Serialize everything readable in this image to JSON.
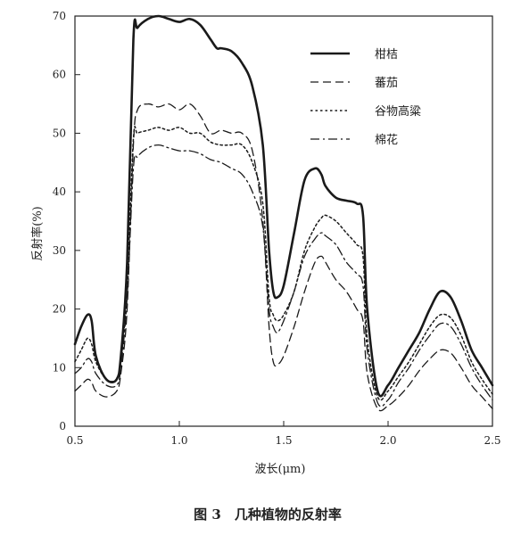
{
  "chart_data": {
    "type": "line",
    "title": "",
    "caption": "图 3　几种植物的反射率",
    "xlabel": "波长(μm)",
    "ylabel": "反射率(%)",
    "xlim": [
      0.5,
      2.5
    ],
    "ylim": [
      0,
      70
    ],
    "x_ticks": [
      0.5,
      1.0,
      1.5,
      2.0,
      2.5
    ],
    "x_tick_labels": [
      "0.5",
      "1.0",
      "1.5",
      "2.0",
      "2.5"
    ],
    "y_ticks": [
      0,
      10,
      20,
      30,
      40,
      50,
      60,
      70
    ],
    "y_tick_labels": [
      "0",
      "10",
      "20",
      "30",
      "40",
      "50",
      "60",
      "70"
    ],
    "grid": false,
    "legend_position": "top-right",
    "series": [
      {
        "name": "柑桔",
        "style": "solid",
        "x": [
          0.5,
          0.53,
          0.56,
          0.58,
          0.6,
          0.65,
          0.7,
          0.72,
          0.75,
          0.78,
          0.8,
          0.85,
          0.9,
          0.95,
          1.0,
          1.05,
          1.1,
          1.15,
          1.18,
          1.2,
          1.25,
          1.3,
          1.35,
          1.4,
          1.43,
          1.45,
          1.47,
          1.5,
          1.55,
          1.6,
          1.65,
          1.68,
          1.7,
          1.75,
          1.8,
          1.85,
          1.88,
          1.9,
          1.95,
          2.0,
          2.05,
          2.1,
          2.15,
          2.2,
          2.25,
          2.3,
          2.35,
          2.4,
          2.45,
          2.5
        ],
        "y": [
          14,
          17,
          19,
          18,
          12,
          8,
          8,
          12,
          28,
          66,
          68,
          69.5,
          70,
          69.5,
          69,
          69.5,
          68.5,
          66,
          64.5,
          64.5,
          64,
          62,
          58,
          48,
          30,
          23,
          22,
          24,
          33,
          42,
          44,
          43,
          41,
          39,
          38.5,
          38,
          36,
          20,
          6,
          7,
          10,
          13,
          16,
          20,
          23,
          22,
          18,
          13,
          10,
          7
        ]
      },
      {
        "name": "蕃茄",
        "style": "dashed",
        "x": [
          0.5,
          0.53,
          0.56,
          0.58,
          0.6,
          0.65,
          0.7,
          0.72,
          0.75,
          0.78,
          0.8,
          0.85,
          0.9,
          0.95,
          1.0,
          1.05,
          1.1,
          1.15,
          1.2,
          1.25,
          1.3,
          1.35,
          1.4,
          1.43,
          1.45,
          1.47,
          1.5,
          1.55,
          1.6,
          1.65,
          1.68,
          1.7,
          1.75,
          1.8,
          1.85,
          1.88,
          1.9,
          1.95,
          2.0,
          2.05,
          2.1,
          2.15,
          2.2,
          2.25,
          2.3,
          2.35,
          2.4,
          2.45,
          2.5
        ],
        "y": [
          6,
          7,
          8,
          7.5,
          6,
          5,
          6,
          9,
          20,
          48,
          54,
          55,
          54.5,
          55,
          54,
          55,
          53,
          50,
          50.5,
          50,
          50,
          47,
          35,
          17,
          11,
          10.5,
          12,
          17,
          23,
          28,
          29,
          28,
          25,
          23,
          20,
          18,
          9,
          3,
          3.5,
          5,
          7,
          9.5,
          11.5,
          13,
          12.5,
          10,
          7,
          5,
          3
        ]
      },
      {
        "name": "谷物高粱",
        "style": "dotted",
        "x": [
          0.5,
          0.53,
          0.56,
          0.58,
          0.6,
          0.65,
          0.7,
          0.72,
          0.75,
          0.78,
          0.8,
          0.85,
          0.9,
          0.95,
          1.0,
          1.05,
          1.1,
          1.15,
          1.2,
          1.25,
          1.3,
          1.35,
          1.4,
          1.43,
          1.45,
          1.47,
          1.5,
          1.55,
          1.6,
          1.65,
          1.68,
          1.7,
          1.75,
          1.8,
          1.85,
          1.88,
          1.9,
          1.95,
          2.0,
          2.05,
          2.1,
          2.15,
          2.2,
          2.25,
          2.3,
          2.35,
          2.4,
          2.45,
          2.5
        ],
        "y": [
          11,
          13,
          15,
          14,
          11,
          8,
          8,
          11,
          24,
          49,
          50,
          50.5,
          51,
          50.5,
          51,
          50,
          50,
          48.5,
          48,
          48,
          48,
          45,
          38,
          22,
          19,
          18,
          19,
          23,
          30,
          34,
          35.5,
          36,
          35,
          33,
          31,
          29,
          15,
          5,
          6,
          8.5,
          11,
          14,
          17,
          19,
          18.5,
          15.5,
          11,
          8,
          5.5
        ]
      },
      {
        "name": "棉花",
        "style": "dashdot",
        "x": [
          0.5,
          0.53,
          0.56,
          0.58,
          0.6,
          0.65,
          0.7,
          0.72,
          0.75,
          0.78,
          0.8,
          0.85,
          0.9,
          0.95,
          1.0,
          1.05,
          1.1,
          1.15,
          1.2,
          1.25,
          1.3,
          1.35,
          1.4,
          1.43,
          1.45,
          1.47,
          1.5,
          1.55,
          1.6,
          1.65,
          1.68,
          1.7,
          1.75,
          1.8,
          1.85,
          1.88,
          1.9,
          1.95,
          2.0,
          2.05,
          2.1,
          2.15,
          2.2,
          2.25,
          2.3,
          2.35,
          2.4,
          2.45,
          2.5
        ],
        "y": [
          9,
          10,
          11.5,
          11,
          9,
          7,
          7,
          10,
          22,
          44,
          46,
          47.5,
          48,
          47.5,
          47,
          47,
          46.5,
          45.5,
          45,
          44,
          43,
          40,
          34,
          20,
          17,
          16,
          18,
          23,
          29,
          32,
          33,
          32.5,
          31,
          28,
          26,
          24,
          13,
          4,
          4.5,
          7.5,
          10,
          13,
          15.5,
          17.5,
          17,
          14,
          10,
          7,
          4.5
        ]
      }
    ]
  }
}
